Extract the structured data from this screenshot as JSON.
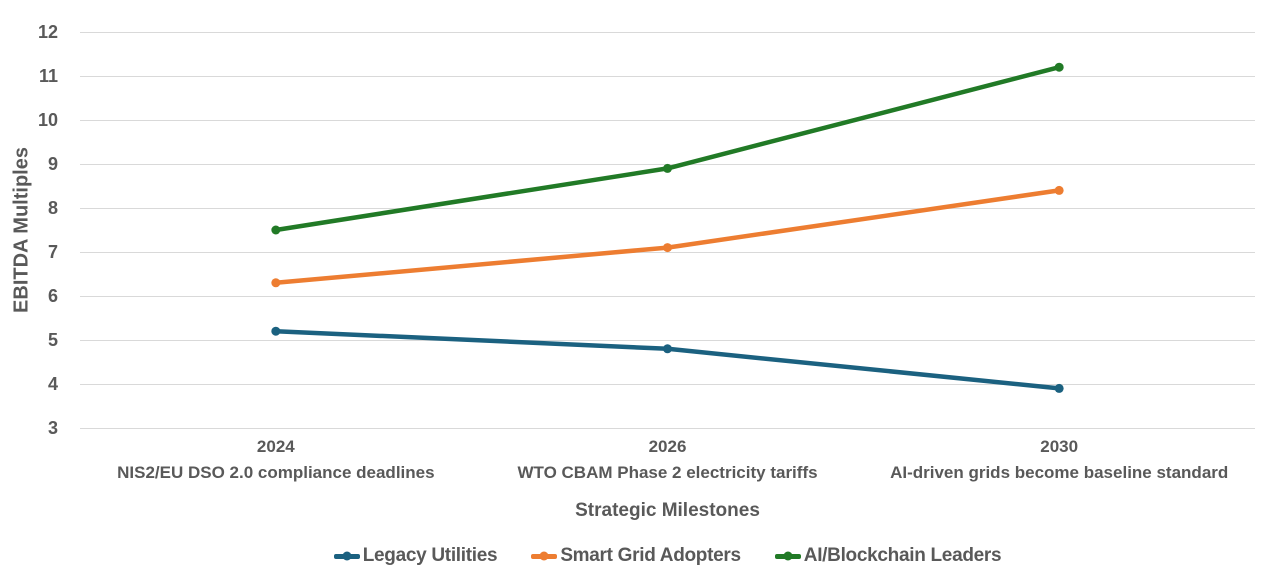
{
  "chart_data": {
    "type": "line",
    "title": "",
    "xlabel": "Strategic Milestones",
    "ylabel": "EBITDA Multiples",
    "ylim": [
      3,
      12
    ],
    "yticks": [
      3,
      4,
      5,
      6,
      7,
      8,
      9,
      10,
      11,
      12
    ],
    "grid": true,
    "legend_position": "bottom",
    "categories": [
      {
        "year": "2024",
        "caption": "NIS2/EU DSO 2.0 compliance deadlines"
      },
      {
        "year": "2026",
        "caption": "WTO CBAM Phase 2 electricity tariffs"
      },
      {
        "year": "2030",
        "caption": "AI-driven grids become baseline standard"
      }
    ],
    "series": [
      {
        "name": "Legacy Utilities",
        "color": "#1B6180",
        "values": [
          5.2,
          4.8,
          3.9
        ]
      },
      {
        "name": "Smart Grid Adopters",
        "color": "#ED7D31",
        "values": [
          6.3,
          7.1,
          8.4
        ]
      },
      {
        "name": "AI/Blockchain Leaders",
        "color": "#217A26",
        "values": [
          7.5,
          8.9,
          11.2
        ]
      }
    ]
  },
  "colors": {
    "text": "#595959",
    "gridline": "#D9D9D9",
    "background": "#ffffff"
  }
}
